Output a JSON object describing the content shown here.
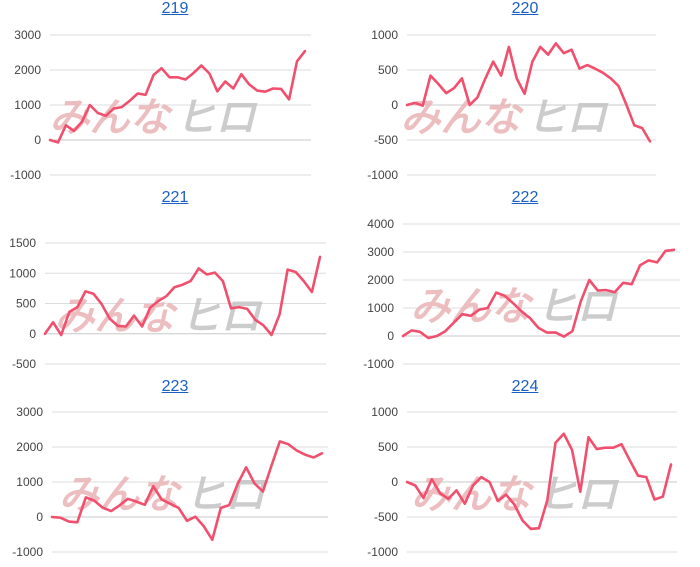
{
  "watermark": {
    "left_text": "みんな",
    "right_text": "ヒロ",
    "left_color": "#e9b3b6",
    "right_color": "#c4c4c4"
  },
  "line_color": "#f0506e",
  "chart_data": [
    {
      "type": "line",
      "title": "219",
      "ylim": [
        -1000,
        3000
      ],
      "yticks": [
        -1000,
        0,
        1000,
        2000,
        3000
      ],
      "grid": true,
      "series": [
        {
          "values": [
            0,
            -70,
            420,
            260,
            520,
            1000,
            770,
            690,
            900,
            940,
            1120,
            1330,
            1290,
            1860,
            2050,
            1790,
            1790,
            1730,
            1910,
            2130,
            1900,
            1390,
            1670,
            1470,
            1880,
            1590,
            1410,
            1380,
            1470,
            1460,
            1160,
            2250,
            2540
          ]
        }
      ]
    },
    {
      "type": "line",
      "title": "220",
      "ylim": [
        -1000,
        1000
      ],
      "yticks": [
        -1000,
        -500,
        0,
        500,
        1000
      ],
      "grid": true,
      "series": [
        {
          "values": [
            0,
            30,
            -10,
            420,
            300,
            170,
            240,
            380,
            0,
            110,
            380,
            620,
            420,
            830,
            380,
            160,
            620,
            830,
            720,
            880,
            740,
            790,
            520,
            570,
            520,
            460,
            380,
            270,
            0,
            -290,
            -330,
            -520
          ]
        }
      ]
    },
    {
      "type": "line",
      "title": "221",
      "ylim": [
        -500,
        1500
      ],
      "yticks": [
        -500,
        0,
        500,
        1000,
        1500
      ],
      "grid": true,
      "series": [
        {
          "values": [
            0,
            190,
            -20,
            360,
            440,
            700,
            660,
            490,
            250,
            130,
            120,
            300,
            120,
            430,
            540,
            620,
            770,
            810,
            870,
            1080,
            980,
            1010,
            870,
            420,
            440,
            410,
            230,
            140,
            -20,
            320,
            1060,
            1020,
            870,
            690,
            1270
          ]
        }
      ]
    },
    {
      "type": "line",
      "title": "222",
      "ylim": [
        -1000,
        4000
      ],
      "yticks": [
        -1000,
        0,
        1000,
        2000,
        3000,
        4000
      ],
      "grid": true,
      "series": [
        {
          "values": [
            0,
            200,
            150,
            -70,
            0,
            170,
            480,
            780,
            720,
            940,
            1000,
            1550,
            1440,
            1170,
            880,
            640,
            290,
            120,
            130,
            -20,
            170,
            1240,
            2000,
            1620,
            1640,
            1560,
            1900,
            1850,
            2530,
            2700,
            2630,
            3040,
            3080
          ]
        }
      ]
    },
    {
      "type": "line",
      "title": "223",
      "ylim": [
        -1000,
        3000
      ],
      "yticks": [
        -1000,
        0,
        1000,
        2000,
        3000
      ],
      "grid": true,
      "series": [
        {
          "values": [
            0,
            -20,
            -130,
            -150,
            560,
            470,
            270,
            170,
            330,
            520,
            440,
            350,
            880,
            500,
            380,
            260,
            -110,
            10,
            -270,
            -650,
            260,
            340,
            940,
            1420,
            960,
            730,
            1460,
            2160,
            2080,
            1900,
            1780,
            1700,
            1820
          ]
        }
      ]
    },
    {
      "type": "line",
      "title": "224",
      "ylim": [
        -1000,
        1000
      ],
      "yticks": [
        -1000,
        -500,
        0,
        500,
        1000
      ],
      "grid": true,
      "series": [
        {
          "values": [
            0,
            -50,
            -230,
            40,
            -160,
            -240,
            -120,
            -310,
            -50,
            70,
            0,
            -270,
            -180,
            -320,
            -550,
            -670,
            -660,
            -260,
            560,
            690,
            460,
            -140,
            640,
            470,
            490,
            490,
            540,
            310,
            90,
            70,
            -250,
            -210,
            250
          ]
        }
      ]
    }
  ]
}
